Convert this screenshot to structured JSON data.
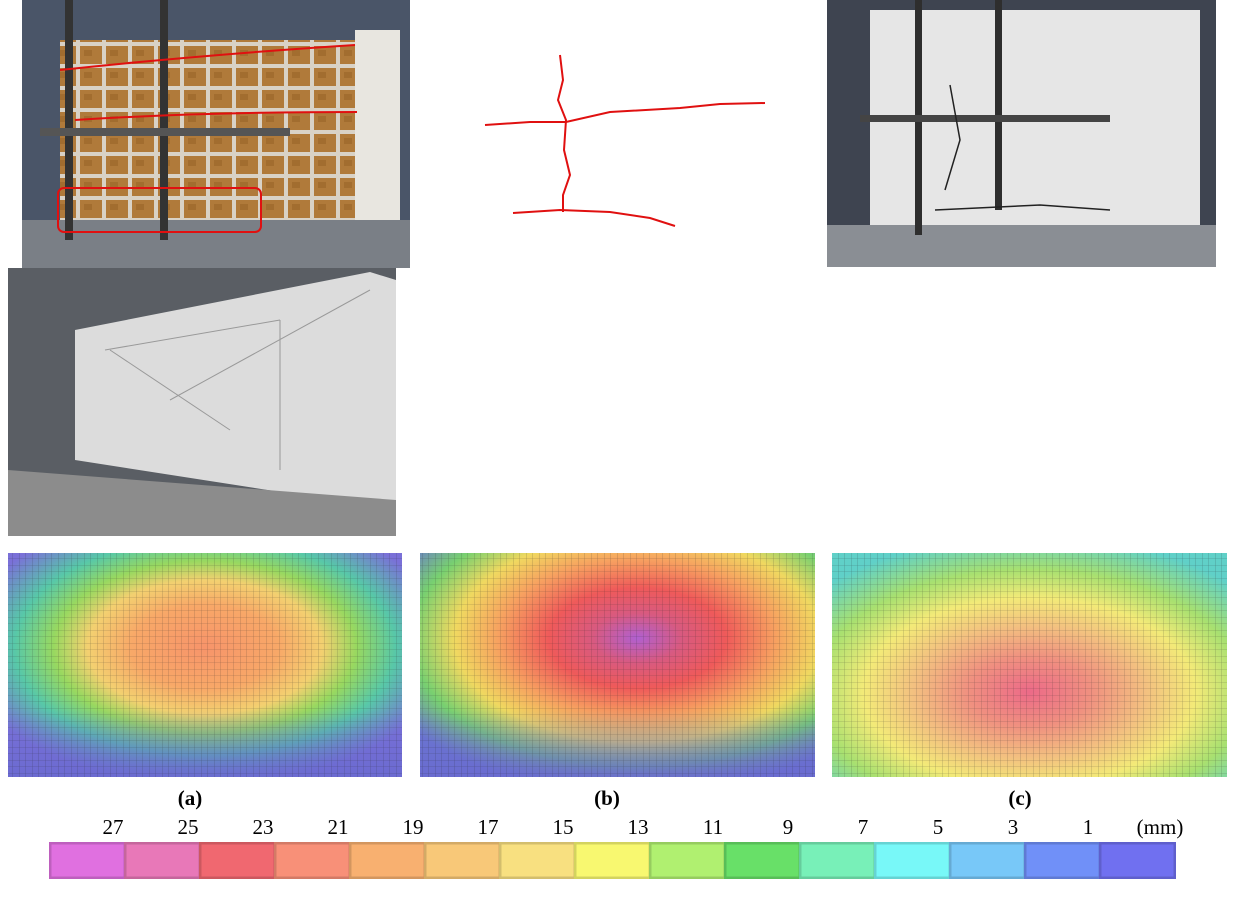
{
  "panels": [
    {
      "caption": "(a)"
    },
    {
      "caption": "(b)"
    },
    {
      "caption": "(c)"
    }
  ],
  "legend": {
    "labels": [
      27,
      25,
      23,
      21,
      19,
      17,
      15,
      13,
      11,
      9,
      7,
      5,
      3,
      1
    ],
    "unit": "(mm)",
    "colors": [
      "#e070e0",
      "#e878b8",
      "#f06870",
      "#f89078",
      "#f8b070",
      "#f8c878",
      "#f8e080",
      "#f8f870",
      "#b0f070",
      "#68e068",
      "#78f0b8",
      "#78f8f8",
      "#78c8f8",
      "#7090f8",
      "#7070f0"
    ]
  }
}
